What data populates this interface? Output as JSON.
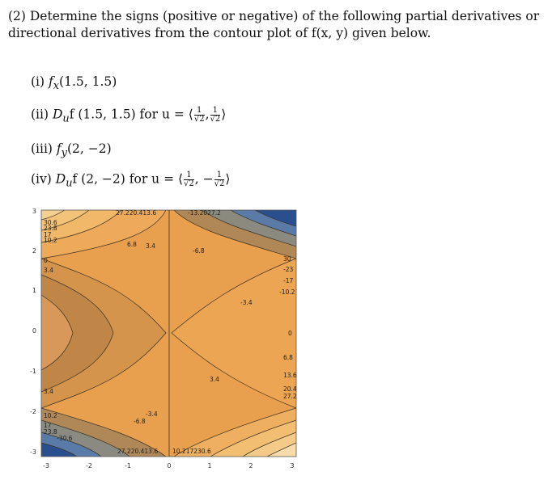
{
  "problem": {
    "intro": "(2) Determine the signs (positive or negative) of the following partial derivatives or directional derivatives from the contour plot of f(x, y) given below.",
    "parts": [
      {
        "label": "(i)",
        "text": "f",
        "sub": "x",
        "args": "(1.5, 1.5)",
        "vec": null
      },
      {
        "label": "(ii)",
        "text": "D",
        "sub": "u",
        "args": "f (1.5, 1.5) for u = ⟨",
        "vec": {
          "a_num": "1",
          "a_den": "√2",
          "sep": ",",
          "b_sign": "",
          "b_num": "1",
          "b_den": "√2",
          "close": "⟩"
        }
      },
      {
        "label": "(iii)",
        "text": "f",
        "sub": "y",
        "args": "(2, −2)",
        "vec": null
      },
      {
        "label": "(iv)",
        "text": "D",
        "sub": "u",
        "args": "f (2, −2) for u = ⟨",
        "vec": {
          "a_num": "1",
          "a_den": "√2",
          "sep": ", −",
          "b_sign": "",
          "b_num": "1",
          "b_den": "√2",
          "close": "⟩"
        }
      }
    ]
  },
  "plot": {
    "x_ticks": [
      "-3",
      "-2",
      "-1",
      "0",
      "1",
      "2",
      "3"
    ],
    "y_ticks": [
      "3",
      "2",
      "1",
      "0",
      "-1",
      "-2",
      "-3"
    ],
    "contour_labels_top": "27.220.413.6",
    "contour_labels_top_right": "-13.2027.2",
    "contour_labels_left": [
      "30.6",
      "23.8",
      "17",
      "10.2",
      "0",
      "3.4"
    ],
    "contour_labels_mid": [
      "6.8",
      "3.4",
      "-6.8"
    ],
    "contour_labels_right": [
      "30",
      "-23",
      "-17",
      "-10.2",
      "-3.4",
      "0",
      "6.8",
      "13.6",
      "20.4",
      "27.2"
    ],
    "contour_labels_center_right": "3.4",
    "contour_labels_bottom_left": [
      "3.4",
      "10.2",
      "17",
      "23.8",
      "-30.6"
    ],
    "contour_labels_bottom_mid": [
      "-3.4",
      "-6.8"
    ],
    "contour_labels_bottom": "27.220.413.6",
    "contour_labels_bottom_right": "10.217230.6",
    "colors": {
      "warm": "#e8a04e",
      "warm_light": "#f0b868",
      "mid": "#c8904e",
      "dark_warm": "#a07040",
      "blue_dark": "#2a4f8f",
      "blue_mid": "#5a7aa8",
      "gray": "#8a8a80",
      "pale": "#f5e6b8"
    }
  }
}
